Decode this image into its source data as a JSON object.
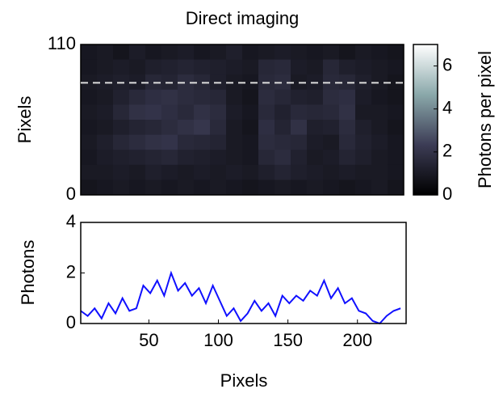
{
  "chart_data": [
    {
      "type": "heatmap",
      "title": "Direct imaging",
      "ylabel": "Pixels",
      "xlim": [
        1,
        235
      ],
      "ylim": [
        0,
        110
      ],
      "yticks": [
        0,
        110
      ],
      "colorbar_label": "Photons per pixel",
      "clim": [
        0,
        7
      ],
      "cticks": [
        0,
        2,
        4,
        6
      ],
      "colormap": [
        "#000000",
        "#3c3c55",
        "#8aa8aa",
        "#ffffff"
      ],
      "profile_row": 82,
      "z": [
        [
          0.9,
          1.0,
          0.8,
          1.1,
          0.9,
          1.0,
          1.1,
          0.9,
          1.0,
          1.2,
          0.9,
          1.0,
          1.1,
          1.0,
          0.9,
          1.0,
          0.8,
          1.0,
          0.9,
          0.8
        ],
        [
          0.9,
          1.0,
          1.1,
          1.0,
          1.2,
          1.3,
          1.4,
          1.3,
          1.2,
          1.1,
          1.0,
          1.5,
          1.6,
          1.1,
          1.0,
          1.5,
          1.2,
          1.1,
          1.0,
          0.9
        ],
        [
          1.0,
          1.1,
          1.2,
          1.1,
          1.5,
          1.4,
          1.7,
          1.5,
          1.2,
          1.0,
          0.9,
          1.6,
          1.7,
          1.0,
          1.1,
          1.6,
          1.5,
          1.2,
          1.0,
          0.8
        ],
        [
          0.9,
          1.0,
          1.3,
          1.6,
          1.8,
          1.9,
          1.7,
          1.6,
          1.5,
          1.0,
          0.8,
          1.7,
          1.5,
          1.3,
          1.2,
          1.7,
          1.8,
          1.1,
          0.9,
          0.8
        ],
        [
          1.0,
          1.1,
          1.5,
          1.9,
          2.0,
          1.8,
          1.6,
          1.9,
          1.7,
          1.1,
          0.9,
          1.6,
          1.3,
          1.6,
          1.5,
          1.6,
          1.9,
          1.0,
          1.0,
          0.9
        ],
        [
          0.9,
          1.0,
          1.2,
          1.4,
          1.5,
          1.7,
          1.9,
          2.1,
          1.6,
          1.0,
          0.8,
          1.8,
          1.4,
          1.9,
          1.2,
          1.3,
          1.7,
          1.2,
          1.0,
          0.8
        ],
        [
          1.0,
          1.2,
          1.5,
          1.7,
          1.9,
          2.0,
          1.6,
          1.5,
          1.4,
          1.0,
          0.9,
          1.7,
          1.6,
          1.5,
          1.1,
          1.0,
          1.6,
          1.3,
          1.1,
          0.9
        ],
        [
          0.9,
          1.1,
          1.2,
          1.3,
          1.4,
          1.5,
          1.3,
          1.2,
          1.1,
          1.0,
          0.9,
          1.5,
          1.7,
          1.3,
          1.0,
          1.1,
          1.4,
          1.2,
          1.0,
          0.9
        ],
        [
          1.0,
          1.0,
          1.1,
          1.0,
          1.2,
          1.1,
          1.0,
          1.1,
          1.0,
          1.1,
          1.0,
          1.2,
          1.4,
          1.2,
          1.1,
          1.0,
          1.1,
          1.0,
          1.0,
          0.9
        ],
        [
          0.8,
          0.9,
          1.0,
          0.9,
          1.0,
          0.9,
          1.0,
          0.9,
          1.0,
          0.9,
          0.8,
          0.9,
          1.0,
          0.9,
          1.0,
          0.9,
          0.8,
          0.9,
          1.0,
          0.8
        ]
      ]
    },
    {
      "type": "line",
      "xlabel": "Pixels",
      "ylabel": "Photons",
      "xlim": [
        1,
        235
      ],
      "ylim": [
        0,
        4
      ],
      "xticks": [
        50,
        100,
        150,
        200
      ],
      "yticks": [
        0,
        2,
        4
      ],
      "series": [
        {
          "color": "#1010ff",
          "x": [
            1,
            6,
            11,
            16,
            21,
            26,
            31,
            36,
            41,
            46,
            51,
            56,
            61,
            66,
            71,
            76,
            81,
            86,
            91,
            96,
            101,
            106,
            111,
            116,
            121,
            126,
            131,
            136,
            141,
            146,
            151,
            156,
            161,
            166,
            171,
            176,
            181,
            186,
            191,
            196,
            201,
            206,
            211,
            216,
            221,
            226,
            231
          ],
          "values": [
            0.5,
            0.3,
            0.6,
            0.2,
            0.8,
            0.4,
            1.0,
            0.5,
            0.6,
            1.5,
            1.2,
            1.7,
            1.1,
            2.0,
            1.3,
            1.6,
            1.1,
            1.4,
            0.8,
            1.5,
            0.9,
            0.3,
            0.6,
            0.1,
            0.4,
            0.9,
            0.5,
            0.8,
            0.3,
            1.1,
            0.8,
            1.1,
            0.9,
            1.3,
            1.1,
            1.7,
            1.0,
            1.4,
            0.8,
            1.0,
            0.5,
            0.4,
            0.1,
            0.0,
            0.3,
            0.5,
            0.6
          ]
        }
      ]
    }
  ]
}
